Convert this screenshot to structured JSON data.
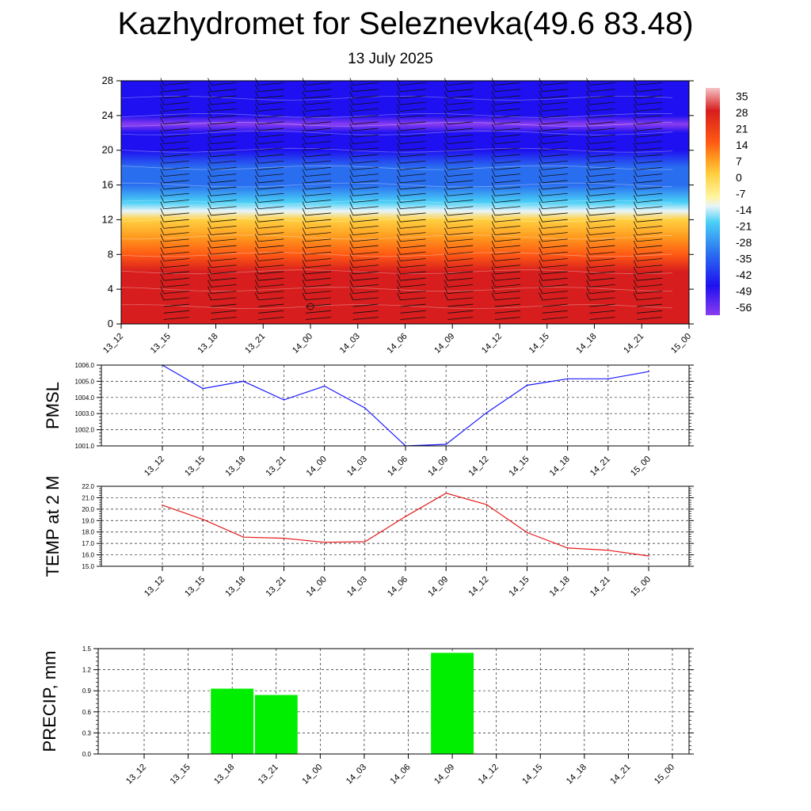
{
  "title": "Kazhydromet for Seleznevka(49.6 83.48)",
  "subtitle": "13 July 2025",
  "time_labels": [
    "13_12",
    "13_15",
    "13_18",
    "13_21",
    "14_00",
    "14_03",
    "14_06",
    "14_09",
    "14_12",
    "14_15",
    "14_18",
    "14_21",
    "15_00"
  ],
  "chart_data": [
    {
      "type": "heatmap",
      "name": "Temperature cross-section with wind barbs",
      "title": "",
      "x": [
        "13_12",
        "13_15",
        "13_18",
        "13_21",
        "14_00",
        "14_03",
        "14_06",
        "14_09",
        "14_12",
        "14_15",
        "14_18",
        "14_21",
        "15_00"
      ],
      "y_ticks": [
        0,
        4,
        8,
        12,
        16,
        20,
        24,
        28
      ],
      "ylim": [
        0,
        28
      ],
      "colorbar": {
        "labels": [
          "35",
          "28",
          "21",
          "14",
          "7",
          "0",
          "-7",
          "-14",
          "-21",
          "-28",
          "-35",
          "-42",
          "-49",
          "-56"
        ],
        "stops": [
          {
            "v": 38,
            "color": "#f6c2c6"
          },
          {
            "v": 28,
            "color": "#d71d1d"
          },
          {
            "v": 14,
            "color": "#ff5a14"
          },
          {
            "v": 7,
            "color": "#ff9a1e"
          },
          {
            "v": 0,
            "color": "#ffd040"
          },
          {
            "v": -10,
            "color": "#fff5a0"
          },
          {
            "v": -14,
            "color": "#e8f4f8"
          },
          {
            "v": -21,
            "color": "#4ad0f6"
          },
          {
            "v": -35,
            "color": "#2a6ef0"
          },
          {
            "v": -49,
            "color": "#1e10f0"
          },
          {
            "v": -62,
            "color": "#8a3cf0"
          }
        ]
      },
      "vertical_profile": [
        {
          "level": 0,
          "value": 32
        },
        {
          "level": 2,
          "value": 31
        },
        {
          "level": 4,
          "value": 29
        },
        {
          "level": 6,
          "value": 24
        },
        {
          "level": 8,
          "value": 14
        },
        {
          "level": 10,
          "value": 6
        },
        {
          "level": 12,
          "value": -5
        },
        {
          "level": 13,
          "value": -14
        },
        {
          "level": 14,
          "value": -20
        },
        {
          "level": 16,
          "value": -30
        },
        {
          "level": 18,
          "value": -38
        },
        {
          "level": 20,
          "value": -45
        },
        {
          "level": 22,
          "value": -52
        },
        {
          "level": 23,
          "value": -56
        },
        {
          "level": 24,
          "value": -53
        },
        {
          "level": 26,
          "value": -49
        },
        {
          "level": 28,
          "value": -49
        }
      ]
    },
    {
      "type": "line",
      "ylabel": "PMSL",
      "x": [
        "13_12",
        "13_15",
        "13_18",
        "13_21",
        "14_00",
        "14_03",
        "14_06",
        "14_09",
        "14_12",
        "14_15",
        "14_18",
        "14_21",
        "15_00"
      ],
      "ylim": [
        1001.0,
        1006.0
      ],
      "y_ticks": [
        "1001.0",
        "1002.0",
        "1003.0",
        "1004.0",
        "1005.0",
        "1006.0"
      ],
      "series": [
        {
          "color": "#1a1aff",
          "values": [
            1006.0,
            1004.55,
            1005.0,
            1003.85,
            1004.7,
            1003.35,
            1001.0,
            1001.1,
            1003.05,
            1004.75,
            1005.15,
            1005.15,
            1005.6
          ]
        }
      ]
    },
    {
      "type": "line",
      "ylabel": "TEMP at 2 M",
      "x": [
        "13_12",
        "13_15",
        "13_18",
        "13_21",
        "14_00",
        "14_03",
        "14_06",
        "14_09",
        "14_12",
        "14_15",
        "14_18",
        "14_21",
        "15_00"
      ],
      "ylim": [
        15.0,
        22.0
      ],
      "y_ticks": [
        "15.0",
        "16.0",
        "17.0",
        "18.0",
        "19.0",
        "20.0",
        "21.0",
        "22.0"
      ],
      "series": [
        {
          "color": "#e61a1a",
          "values": [
            20.35,
            19.1,
            17.55,
            17.45,
            17.1,
            17.15,
            19.35,
            21.4,
            20.4,
            17.95,
            16.6,
            16.4,
            15.9
          ]
        }
      ]
    },
    {
      "type": "bar",
      "ylabel": "PRECIP, mm",
      "x": [
        "13_12",
        "13_15",
        "13_18",
        "13_21",
        "14_00",
        "14_03",
        "14_06",
        "14_09",
        "14_12",
        "14_15",
        "14_18",
        "14_21",
        "15_00"
      ],
      "ylim": [
        0,
        1.5
      ],
      "y_ticks": [
        "0.0",
        "0.3",
        "0.6",
        "0.9",
        "1.2",
        "1.5"
      ],
      "series": [
        {
          "color": "#00ee00",
          "values": [
            0,
            0,
            0.93,
            0.84,
            0,
            0,
            0,
            1.44,
            0,
            0,
            0,
            0,
            0
          ]
        }
      ]
    }
  ]
}
